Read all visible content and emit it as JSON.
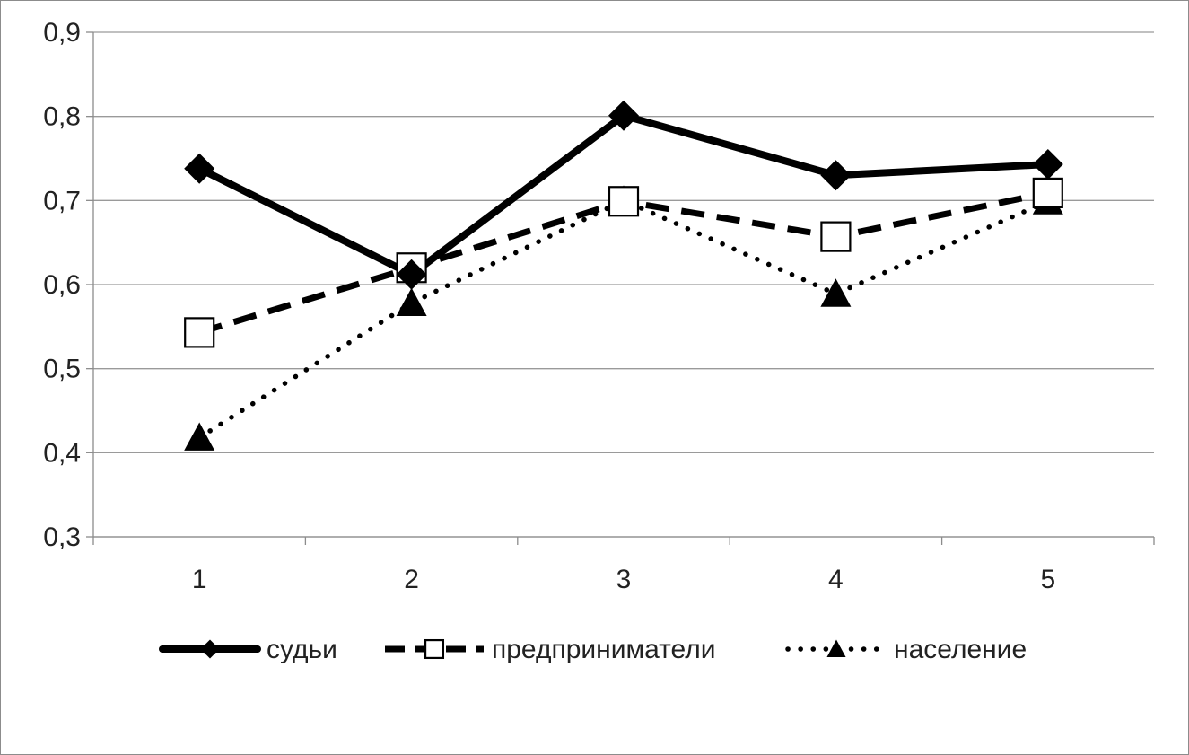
{
  "chart_data": {
    "type": "line",
    "title": "",
    "xlabel": "",
    "ylabel": "",
    "categories": [
      "1",
      "2",
      "3",
      "4",
      "5"
    ],
    "ylim": [
      0.3,
      0.9
    ],
    "yticks": [
      0.3,
      0.4,
      0.5,
      0.6,
      0.7,
      0.8,
      0.9
    ],
    "ytick_labels": [
      "0,3",
      "0,4",
      "0,5",
      "0,6",
      "0,7",
      "0,8",
      "0,9"
    ],
    "grid": "horizontal",
    "legend_position": "bottom",
    "series": [
      {
        "name": "судьи",
        "values": [
          0.738,
          0.612,
          0.801,
          0.73,
          0.743
        ],
        "line": "solid",
        "marker": "diamond",
        "color": "#000000"
      },
      {
        "name": "предприниматели",
        "values": [
          0.543,
          0.62,
          0.699,
          0.657,
          0.709
        ],
        "line": "dashed",
        "marker": "square",
        "color": "#000000"
      },
      {
        "name": "население",
        "values": [
          0.418,
          0.578,
          0.7,
          0.589,
          0.699
        ],
        "line": "dotted",
        "marker": "triangle",
        "color": "#000000"
      }
    ]
  }
}
